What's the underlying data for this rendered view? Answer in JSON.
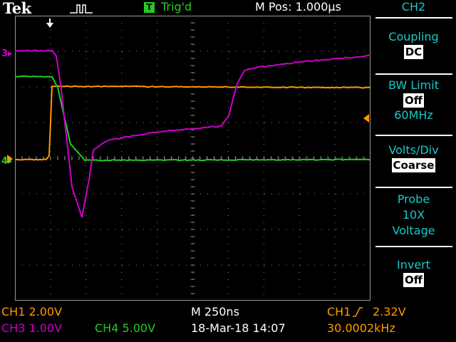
{
  "header": {
    "brand": "Tek",
    "trigger_state_icon": "T",
    "trigger_status": "Trig'd",
    "horizontal_position": "M Pos: 1.000µs"
  },
  "menu": {
    "title": "CH2",
    "items": [
      {
        "label": "Coupling",
        "value": "DC"
      },
      {
        "label": "BW Limit",
        "value": "Off",
        "extra": "60MHz"
      },
      {
        "label": "Volts/Div",
        "value": "Coarse"
      },
      {
        "label": "Probe",
        "value": "10X",
        "extra": "Voltage"
      },
      {
        "label": "Invert",
        "value": "Off"
      }
    ]
  },
  "channel_markers": {
    "ch3": "3",
    "ch4": "4"
  },
  "status": {
    "ch1_scale": "CH1  2.00V",
    "ch3_scale": "CH3  1.00V",
    "ch4_scale": "CH4  5.00V",
    "timebase": "M 250ns",
    "datetime": "18-Mar-18 14:07",
    "trigger_source": "CH1",
    "trigger_slope_icon": "rising-edge-icon",
    "trigger_level": "2.32V",
    "frequency": "30.0002kHz"
  },
  "colors": {
    "ch1": "#ff9900",
    "ch3": "#cc00cc",
    "ch4": "#22cc22",
    "menu_text": "#19c8c8",
    "grid": "#777777"
  }
}
